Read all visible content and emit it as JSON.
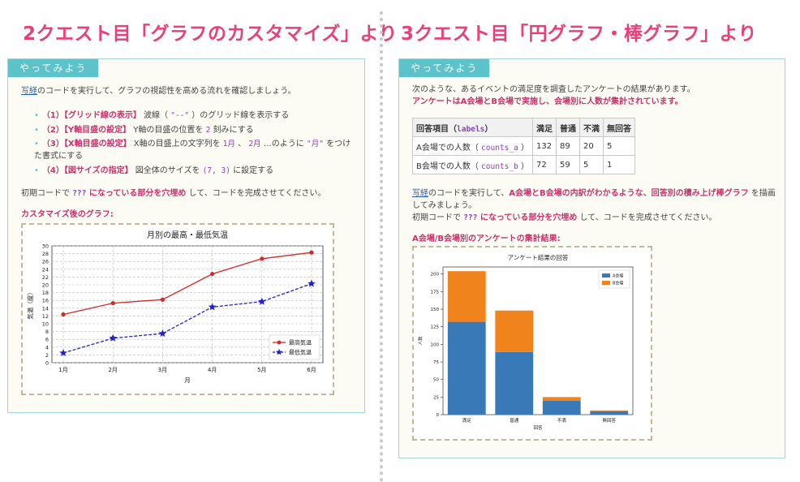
{
  "left": {
    "heading": "2クエスト目「グラフのカスタマイズ」より",
    "tab": "やってみよう",
    "intro_link": "写経",
    "intro_rest": "のコードを実行して、グラフの視認性を高める流れを確認しましょう。",
    "steps": [
      {
        "title": "（1）【グリッド線の表示】",
        "pre": " 波線（ ",
        "code": "\"--\"",
        "post": " ）のグリッド線を表示する"
      },
      {
        "title": "（2）【Y軸目盛の設定】",
        "pre": " Y軸の目盛の位置を ",
        "code": "2",
        "post": " 刻みにする"
      },
      {
        "title": "（3）【X軸目盛の設定】",
        "pre": " X軸の目盛上の文字列を ",
        "code": "1月",
        "mid": " 、 ",
        "code2": "2月",
        "mid2": " …のように ",
        "code3": "\"月\"",
        "post": " をつけた書式にする"
      },
      {
        "title": "（4）【図サイズの指定】",
        "pre": " 図全体のサイズを ",
        "code": "(7, 3)",
        "post": " に設定する"
      }
    ],
    "instr_pre": "初期コードで ",
    "instr_q": "???",
    "instr_mid": " になっている部分を穴埋め",
    "instr_post": " して、コードを完成させてください。",
    "result_label": "カスタマイズ後のグラフ:"
  },
  "right": {
    "heading": "3クエスト目「円グラフ・棒グラフ」より",
    "tab": "やってみよう",
    "line1": "次のような、あるイベントの満足度を調査したアンケートの結果があります。",
    "line2": "アンケートはA会場とB会場で実施し、会場別に人数が集計されています。",
    "table": {
      "header_label": "回答項目（",
      "header_code": "labels",
      "header_close": "）",
      "columns": [
        "満足",
        "普通",
        "不満",
        "無回答"
      ],
      "rows": [
        {
          "label": "A会場での人数（ ",
          "code": "counts_a",
          "close": " ）",
          "values": [
            "132",
            "89",
            "20",
            "5"
          ]
        },
        {
          "label": "B会場での人数（ ",
          "code": "counts_b",
          "close": " ）",
          "values": [
            "72",
            "59",
            "5",
            "1"
          ]
        }
      ]
    },
    "desc_link": "写経",
    "desc_pre": "のコードを実行して、",
    "desc_bold": "A会場とB会場の内訳がわかるような、回答別の積み上げ棒グラフ",
    "desc_post": " を描画してみましょう。",
    "instr_pre": "初期コードで ",
    "instr_q": "???",
    "instr_mid": " になっている部分を穴埋め",
    "instr_post": " して、コードを完成させてください。",
    "result_label": "A会場/B会場別のアンケートの集計結果:"
  },
  "colors": {
    "pink": "#e8407a",
    "teal": "#5bc3c9",
    "red_line": "#d62728",
    "blue_line": "#2222cc",
    "bar_a": "#3a79b8",
    "bar_b": "#f0831c"
  },
  "chart_data": [
    {
      "type": "line",
      "title": "月別の最高・最低気温",
      "xlabel": "月",
      "ylabel": "気温（度）",
      "categories": [
        "1月",
        "2月",
        "3月",
        "4月",
        "5月",
        "6月"
      ],
      "series": [
        {
          "name": "最高気温",
          "values": [
            12.4,
            15.3,
            16.2,
            22.8,
            26.7,
            28.3
          ],
          "color": "#d62728",
          "marker": "circle",
          "linestyle": "solid"
        },
        {
          "name": "最低気温",
          "values": [
            2.5,
            6.3,
            7.5,
            14.3,
            15.7,
            20.3
          ],
          "color": "#2222cc",
          "marker": "star",
          "linestyle": "dashed"
        }
      ],
      "ylim": [
        0,
        30
      ],
      "yticks": [
        "0",
        "2",
        "4",
        "6",
        "8",
        "10",
        "12",
        "14",
        "16",
        "18",
        "20",
        "22",
        "24",
        "26",
        "28",
        "30"
      ],
      "grid": true,
      "legend": "bottom-right"
    },
    {
      "type": "bar",
      "stacked": true,
      "title": "アンケート結果の回答",
      "xlabel": "回答",
      "ylabel": "人数",
      "categories": [
        "満足",
        "普通",
        "不満",
        "無回答"
      ],
      "series": [
        {
          "name": "A会場",
          "values": [
            132,
            89,
            20,
            5
          ],
          "color": "#3a79b8"
        },
        {
          "name": "B会場",
          "values": [
            72,
            59,
            5,
            1
          ],
          "color": "#f0831c"
        }
      ],
      "ylim": [
        0,
        210
      ],
      "yticks": [
        "0",
        "25",
        "50",
        "75",
        "100",
        "125",
        "150",
        "175",
        "200"
      ],
      "grid": false,
      "legend": "top-right"
    }
  ]
}
